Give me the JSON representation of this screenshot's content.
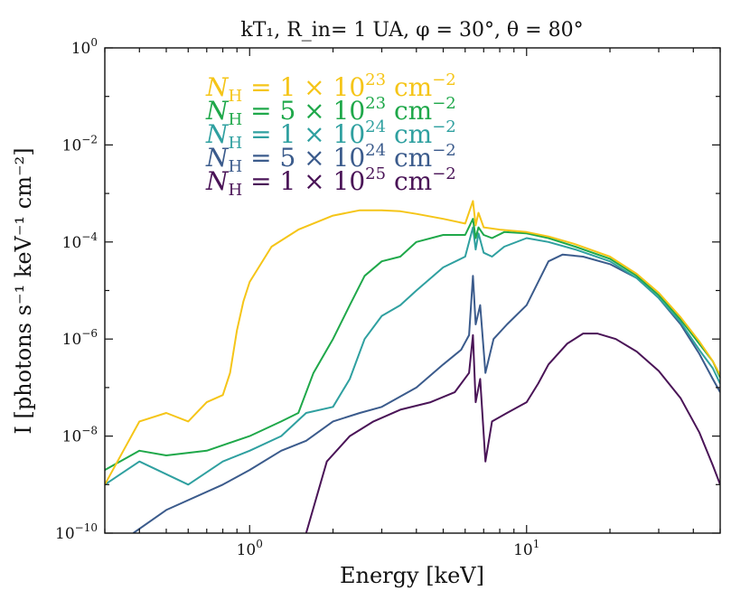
{
  "chart_data": {
    "type": "line",
    "title": "kT₁, R_in= 1 UA, φ = 30°, θ = 80°",
    "xlabel": "Energy [keV]",
    "ylabel": "I [photons s⁻¹ keV⁻¹ cm⁻²]",
    "x_scale": "log",
    "y_scale": "log",
    "xlim": [
      0.3,
      50
    ],
    "ylim": [
      1e-10,
      1
    ],
    "x_major_ticks": [
      {
        "value": 1,
        "label": "10^0"
      },
      {
        "value": 10,
        "label": "10^1"
      }
    ],
    "y_major_ticks": [
      {
        "value": 1e-10,
        "label": "10^-10"
      },
      {
        "value": 1e-08,
        "label": "10^-8"
      },
      {
        "value": 1e-06,
        "label": "10^-6"
      },
      {
        "value": 0.0001,
        "label": "10^-4"
      },
      {
        "value": 0.01,
        "label": "10^-2"
      },
      {
        "value": 1,
        "label": "10^0"
      }
    ],
    "legend_position": "top-left",
    "series": [
      {
        "name": "N_H = 1 × 10^25 cm^-2",
        "legend": {
          "coef": "1",
          "exp": "25"
        },
        "color": "#4a1457",
        "values": [
          [
            1.6,
            1e-10
          ],
          [
            1.9,
            3e-09
          ],
          [
            2.3,
            1e-08
          ],
          [
            2.8,
            2e-08
          ],
          [
            3.5,
            3.5e-08
          ],
          [
            4.5,
            5e-08
          ],
          [
            5.5,
            8e-08
          ],
          [
            6.2,
            2e-07
          ],
          [
            6.4,
            1.2e-06
          ],
          [
            6.55,
            5e-08
          ],
          [
            6.8,
            1.5e-07
          ],
          [
            7.1,
            3e-09
          ],
          [
            7.5,
            2e-08
          ],
          [
            8.5,
            3e-08
          ],
          [
            10,
            5e-08
          ],
          [
            11,
            1.2e-07
          ],
          [
            12,
            3e-07
          ],
          [
            14,
            8e-07
          ],
          [
            16,
            1.3e-06
          ],
          [
            18,
            1.3e-06
          ],
          [
            21,
            1e-06
          ],
          [
            25,
            5.5e-07
          ],
          [
            30,
            2.2e-07
          ],
          [
            36,
            6e-08
          ],
          [
            42,
            1.2e-08
          ],
          [
            47,
            2.5e-09
          ],
          [
            50,
            1e-09
          ]
        ]
      },
      {
        "name": "N_H = 5 × 10^24 cm^-2",
        "legend": {
          "coef": "5",
          "exp": "24"
        },
        "color": "#3b5b8c",
        "values": [
          [
            0.38,
            1e-10
          ],
          [
            0.5,
            3e-10
          ],
          [
            0.8,
            1e-09
          ],
          [
            1,
            2e-09
          ],
          [
            1.3,
            5e-09
          ],
          [
            1.6,
            8e-09
          ],
          [
            2,
            2e-08
          ],
          [
            2.5,
            3e-08
          ],
          [
            3,
            4e-08
          ],
          [
            4,
            1e-07
          ],
          [
            5,
            3e-07
          ],
          [
            5.8,
            6e-07
          ],
          [
            6.2,
            1.2e-06
          ],
          [
            6.4,
            2e-05
          ],
          [
            6.55,
            2e-06
          ],
          [
            6.8,
            5e-06
          ],
          [
            7.1,
            2e-07
          ],
          [
            7.6,
            1e-06
          ],
          [
            8.5,
            2e-06
          ],
          [
            10,
            5e-06
          ],
          [
            12,
            4e-05
          ],
          [
            13.5,
            5.5e-05
          ],
          [
            16,
            5e-05
          ],
          [
            20,
            3.5e-05
          ],
          [
            25,
            1.8e-05
          ],
          [
            30,
            7e-06
          ],
          [
            36,
            2e-06
          ],
          [
            42,
            5e-07
          ],
          [
            47,
            1.5e-07
          ],
          [
            50,
            8e-08
          ]
        ]
      },
      {
        "name": "N_H = 1 × 10^24 cm^-2",
        "legend": {
          "coef": "1",
          "exp": "24"
        },
        "color": "#2fa0a0",
        "values": [
          [
            0.3,
            1e-09
          ],
          [
            0.4,
            3e-09
          ],
          [
            0.6,
            1e-09
          ],
          [
            0.8,
            3e-09
          ],
          [
            1,
            5e-09
          ],
          [
            1.3,
            1e-08
          ],
          [
            1.6,
            3e-08
          ],
          [
            2,
            4e-08
          ],
          [
            2.3,
            1.5e-07
          ],
          [
            2.6,
            1e-06
          ],
          [
            3,
            3e-06
          ],
          [
            3.5,
            5e-06
          ],
          [
            4,
            1e-05
          ],
          [
            5,
            3e-05
          ],
          [
            6,
            5e-05
          ],
          [
            6.4,
            0.0002
          ],
          [
            6.55,
            7e-05
          ],
          [
            6.7,
            0.00015
          ],
          [
            7,
            6e-05
          ],
          [
            7.5,
            5e-05
          ],
          [
            8.3,
            8e-05
          ],
          [
            10,
            0.00012
          ],
          [
            12,
            0.0001
          ],
          [
            15,
            7e-05
          ],
          [
            20,
            4e-05
          ],
          [
            25,
            1.8e-05
          ],
          [
            30,
            7e-06
          ],
          [
            36,
            2.2e-06
          ],
          [
            42,
            6e-07
          ],
          [
            47,
            2.5e-07
          ],
          [
            50,
            1.2e-07
          ]
        ]
      },
      {
        "name": "N_H = 5 × 10^23 cm^-2",
        "legend": {
          "coef": "5",
          "exp": "23"
        },
        "color": "#1fa84a",
        "values": [
          [
            0.3,
            2e-09
          ],
          [
            0.4,
            5e-09
          ],
          [
            0.5,
            4e-09
          ],
          [
            0.7,
            5e-09
          ],
          [
            1,
            1e-08
          ],
          [
            1.3,
            2e-08
          ],
          [
            1.5,
            3e-08
          ],
          [
            1.7,
            2e-07
          ],
          [
            2,
            1e-06
          ],
          [
            2.3,
            5e-06
          ],
          [
            2.6,
            2e-05
          ],
          [
            3,
            4e-05
          ],
          [
            3.5,
            5e-05
          ],
          [
            4,
            0.0001
          ],
          [
            5,
            0.00014
          ],
          [
            6,
            0.00014
          ],
          [
            6.4,
            0.0003
          ],
          [
            6.55,
            0.00012
          ],
          [
            6.7,
            0.0002
          ],
          [
            7,
            0.00014
          ],
          [
            7.5,
            0.00012
          ],
          [
            8.3,
            0.00016
          ],
          [
            10,
            0.00015
          ],
          [
            12,
            0.00012
          ],
          [
            15,
            8e-05
          ],
          [
            20,
            4.5e-05
          ],
          [
            25,
            2e-05
          ],
          [
            30,
            8e-06
          ],
          [
            36,
            2.5e-06
          ],
          [
            42,
            8e-07
          ],
          [
            47,
            3.5e-07
          ],
          [
            50,
            1.6e-07
          ]
        ]
      },
      {
        "name": "N_H = 1 × 10^23 cm^-2",
        "legend": {
          "coef": "1",
          "exp": "23"
        },
        "color": "#f5c518",
        "values": [
          [
            0.3,
            1e-09
          ],
          [
            0.35,
            5e-09
          ],
          [
            0.4,
            2e-08
          ],
          [
            0.5,
            3e-08
          ],
          [
            0.6,
            2e-08
          ],
          [
            0.7,
            5e-08
          ],
          [
            0.8,
            7e-08
          ],
          [
            0.85,
            2e-07
          ],
          [
            0.9,
            1.5e-06
          ],
          [
            0.95,
            6e-06
          ],
          [
            1,
            1.5e-05
          ],
          [
            1.2,
            8e-05
          ],
          [
            1.5,
            0.00018
          ],
          [
            2,
            0.00035
          ],
          [
            2.5,
            0.00045
          ],
          [
            3,
            0.00045
          ],
          [
            3.5,
            0.00043
          ],
          [
            4,
            0.00038
          ],
          [
            5,
            0.0003
          ],
          [
            6,
            0.00024
          ],
          [
            6.4,
            0.0007
          ],
          [
            6.55,
            0.00022
          ],
          [
            6.7,
            0.0004
          ],
          [
            7,
            0.0002
          ],
          [
            8,
            0.00018
          ],
          [
            10,
            0.00016
          ],
          [
            12,
            0.00013
          ],
          [
            15,
            9e-05
          ],
          [
            20,
            5e-05
          ],
          [
            25,
            2.2e-05
          ],
          [
            30,
            9e-06
          ],
          [
            36,
            2.8e-06
          ],
          [
            42,
            9e-07
          ],
          [
            47,
            3.5e-07
          ],
          [
            50,
            1.8e-07
          ]
        ]
      }
    ]
  }
}
